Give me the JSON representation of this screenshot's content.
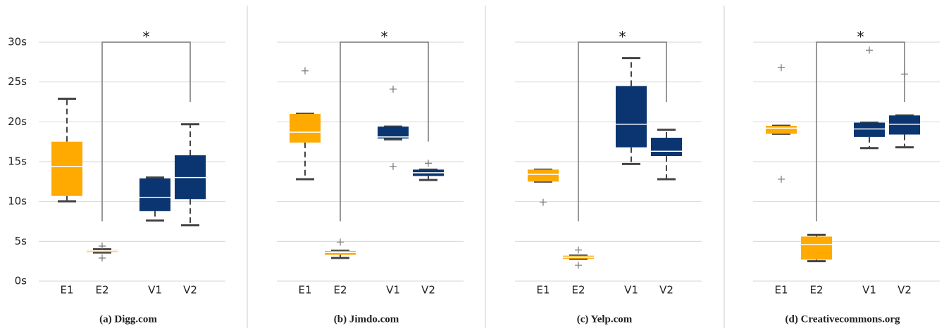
{
  "chart_data": [
    {
      "type": "box",
      "caption": "(a) Digg.com",
      "categories": [
        "E1",
        "E2",
        "V1",
        "V2"
      ],
      "ylim": [
        0,
        33
      ],
      "yticks": [
        {
          "value": 0,
          "label": "0s"
        },
        {
          "value": 5,
          "label": "5s"
        },
        {
          "value": 10,
          "label": "10s"
        },
        {
          "value": 15,
          "label": "15s"
        },
        {
          "value": 20,
          "label": "20s"
        },
        {
          "value": 25,
          "label": "25s"
        },
        {
          "value": 30,
          "label": "30s"
        }
      ],
      "grid": true,
      "boxes": [
        {
          "color": "#ffaa00",
          "whisker_low": 10,
          "q1": 10.7,
          "median": 14.4,
          "q3": 17.5,
          "whisker_high": 22.9
        },
        {
          "color": "#ffaa00",
          "whisker_low": 3.6,
          "q1": 3.65,
          "median": 3.8,
          "q3": 3.9,
          "whisker_high": 4.0,
          "outliers": [
            4.4,
            2.9
          ]
        },
        {
          "color": "#0a3570",
          "whisker_low": 7.6,
          "q1": 8.8,
          "median": 10.5,
          "q3": 12.9,
          "whisker_high": 13.0
        },
        {
          "color": "#0a3570",
          "whisker_low": 7.0,
          "q1": 10.3,
          "median": 13.0,
          "q3": 15.8,
          "whisker_high": 19.7
        }
      ],
      "significance": {
        "label": "*",
        "y": 30,
        "ends": [
          7.5,
          22.5
        ]
      }
    },
    {
      "type": "box",
      "caption": "(b) Jimdo.com",
      "categories": [
        "E1",
        "E2",
        "V1",
        "V2"
      ],
      "ylim": [
        0,
        33
      ],
      "yticks": [
        0,
        5,
        10,
        15,
        20,
        25,
        30
      ],
      "grid": true,
      "boxes": [
        {
          "color": "#ffaa00",
          "whisker_low": 12.8,
          "q1": 17.4,
          "median": 18.7,
          "q3": 21.0,
          "whisker_high": 21.0,
          "outliers": [
            26.4
          ]
        },
        {
          "color": "#ffaa00",
          "whisker_low": 2.9,
          "q1": 3.3,
          "median": 3.6,
          "q3": 3.8,
          "whisker_high": 3.8,
          "outliers": [
            4.9
          ]
        },
        {
          "color": "#0a3570",
          "whisker_low": 17.8,
          "q1": 17.9,
          "median": 18.1,
          "q3": 19.4,
          "whisker_high": 19.4,
          "outliers": [
            24.1,
            14.4
          ]
        },
        {
          "color": "#0a3570",
          "whisker_low": 12.7,
          "q1": 13.2,
          "median": 13.6,
          "q3": 14.0,
          "whisker_high": 14.0,
          "outliers": [
            14.8
          ]
        }
      ],
      "significance": {
        "label": "*",
        "y": 30,
        "ends": [
          7.5,
          17.5
        ]
      }
    },
    {
      "type": "box",
      "caption": "(c) Yelp.com",
      "categories": [
        "E1",
        "E2",
        "V1",
        "V2"
      ],
      "ylim": [
        0,
        33
      ],
      "yticks": [
        0,
        5,
        10,
        15,
        20,
        25,
        30
      ],
      "grid": true,
      "boxes": [
        {
          "color": "#ffaa00",
          "whisker_low": 12.5,
          "q1": 12.5,
          "median": 13.4,
          "q3": 14.0,
          "whisker_high": 14.0,
          "outliers": [
            9.9
          ]
        },
        {
          "color": "#ffaa00",
          "whisker_low": 2.8,
          "q1": 2.8,
          "median": 3.0,
          "q3": 3.2,
          "whisker_high": 3.2,
          "outliers": [
            3.9,
            2.0
          ]
        },
        {
          "color": "#0a3570",
          "whisker_low": 14.7,
          "q1": 16.8,
          "median": 19.7,
          "q3": 24.5,
          "whisker_high": 28.0
        },
        {
          "color": "#0a3570",
          "whisker_low": 12.8,
          "q1": 15.7,
          "median": 16.3,
          "q3": 18.0,
          "whisker_high": 19.0
        }
      ],
      "significance": {
        "label": "*",
        "y": 30,
        "ends": [
          7.5,
          22.5
        ]
      }
    },
    {
      "type": "box",
      "caption": "(d) Creativecommons.org",
      "categories": [
        "E1",
        "E2",
        "V1",
        "V2"
      ],
      "ylim": [
        0,
        33
      ],
      "yticks": [
        0,
        5,
        10,
        15,
        20,
        25,
        30
      ],
      "grid": true,
      "boxes": [
        {
          "color": "#ffaa00",
          "whisker_low": 18.5,
          "q1": 18.5,
          "median": 19.2,
          "q3": 19.5,
          "whisker_high": 19.5,
          "outliers": [
            26.8,
            12.8
          ]
        },
        {
          "color": "#ffaa00",
          "whisker_low": 2.5,
          "q1": 2.7,
          "median": 4.6,
          "q3": 5.6,
          "whisker_high": 5.8
        },
        {
          "color": "#0a3570",
          "whisker_low": 16.7,
          "q1": 18.1,
          "median": 19.1,
          "q3": 19.9,
          "whisker_high": 19.9,
          "outliers": [
            29.0
          ]
        },
        {
          "color": "#0a3570",
          "whisker_low": 16.8,
          "q1": 18.4,
          "median": 19.7,
          "q3": 20.8,
          "whisker_high": 20.8,
          "outliers": [
            26.0
          ]
        }
      ],
      "significance": {
        "label": "*",
        "y": 30,
        "ends": [
          7.5,
          22.5
        ]
      }
    }
  ]
}
